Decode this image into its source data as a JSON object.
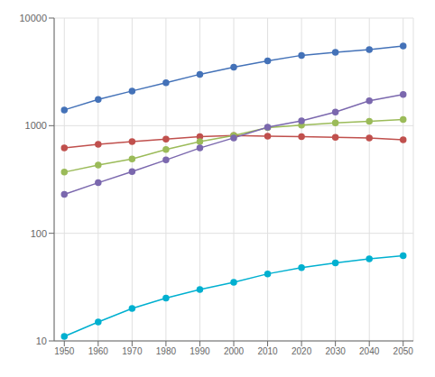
{
  "chart_data": {
    "type": "line",
    "x": [
      1950,
      1960,
      1970,
      1980,
      1990,
      2000,
      2010,
      2020,
      2030,
      2040,
      2050
    ],
    "series": [
      {
        "color": "#4472b8",
        "values": [
          1400,
          1750,
          2100,
          2500,
          3000,
          3500,
          4000,
          4500,
          4800,
          5100,
          5500
        ]
      },
      {
        "color": "#c0504d",
        "values": [
          620,
          670,
          710,
          750,
          790,
          810,
          800,
          790,
          780,
          770,
          740
        ]
      },
      {
        "color": "#9bbb59",
        "values": [
          370,
          430,
          490,
          600,
          710,
          810,
          960,
          1010,
          1060,
          1100,
          1140
        ]
      },
      {
        "color": "#7b68ae",
        "values": [
          230,
          295,
          375,
          480,
          620,
          770,
          970,
          1110,
          1340,
          1700,
          1950
        ]
      },
      {
        "color": "#00b0d0",
        "values": [
          11,
          15,
          20,
          25,
          30,
          35,
          42,
          48,
          53,
          58,
          62
        ]
      }
    ],
    "xlim": [
      1947,
      2053
    ],
    "xticks": [
      1950,
      1960,
      1970,
      1980,
      1990,
      2000,
      2010,
      2020,
      2030,
      2040,
      2050
    ],
    "ylim": [
      10,
      10000
    ],
    "yticks": [
      10,
      100,
      1000,
      10000
    ],
    "log": "y",
    "grid": true,
    "marker": "circle"
  }
}
